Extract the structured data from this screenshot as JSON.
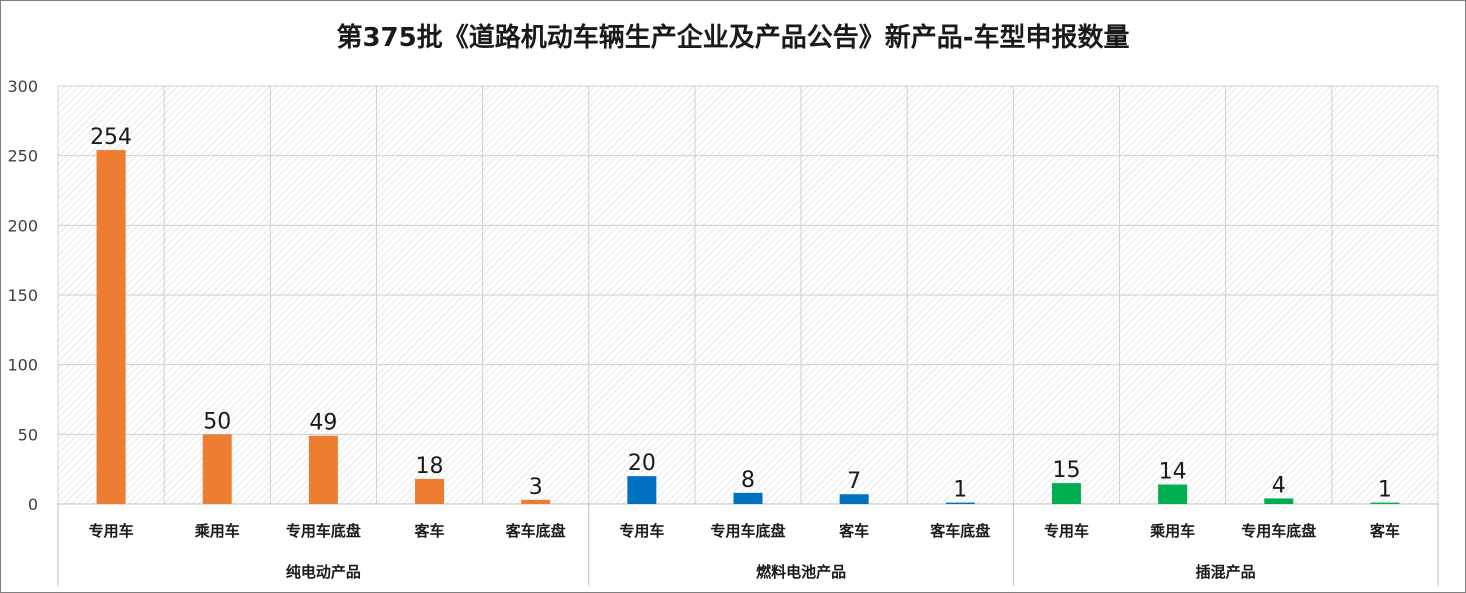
{
  "chart_data": {
    "type": "bar",
    "title": "第375批《道路机动车辆生产企业及产品公告》新产品-车型申报数量",
    "xlabel": "",
    "ylabel": "",
    "ylim": [
      0,
      300
    ],
    "yticks": [
      0,
      50,
      100,
      150,
      200,
      250,
      300
    ],
    "grid": true,
    "legend": "none",
    "groups": [
      {
        "name": "纯电动产品",
        "color": "#ED7D31",
        "categories": [
          "专用车",
          "乘用车",
          "专用车底盘",
          "客车",
          "客车底盘"
        ],
        "values": [
          254,
          50,
          49,
          18,
          3
        ]
      },
      {
        "name": "燃料电池产品",
        "color": "#0070C0",
        "categories": [
          "专用车",
          "专用车底盘",
          "客车",
          "客车底盘"
        ],
        "values": [
          20,
          8,
          7,
          1
        ]
      },
      {
        "name": "插混产品",
        "color": "#00B050",
        "categories": [
          "专用车",
          "乘用车",
          "专用车底盘",
          "客车"
        ],
        "values": [
          15,
          14,
          4,
          1
        ]
      }
    ]
  }
}
